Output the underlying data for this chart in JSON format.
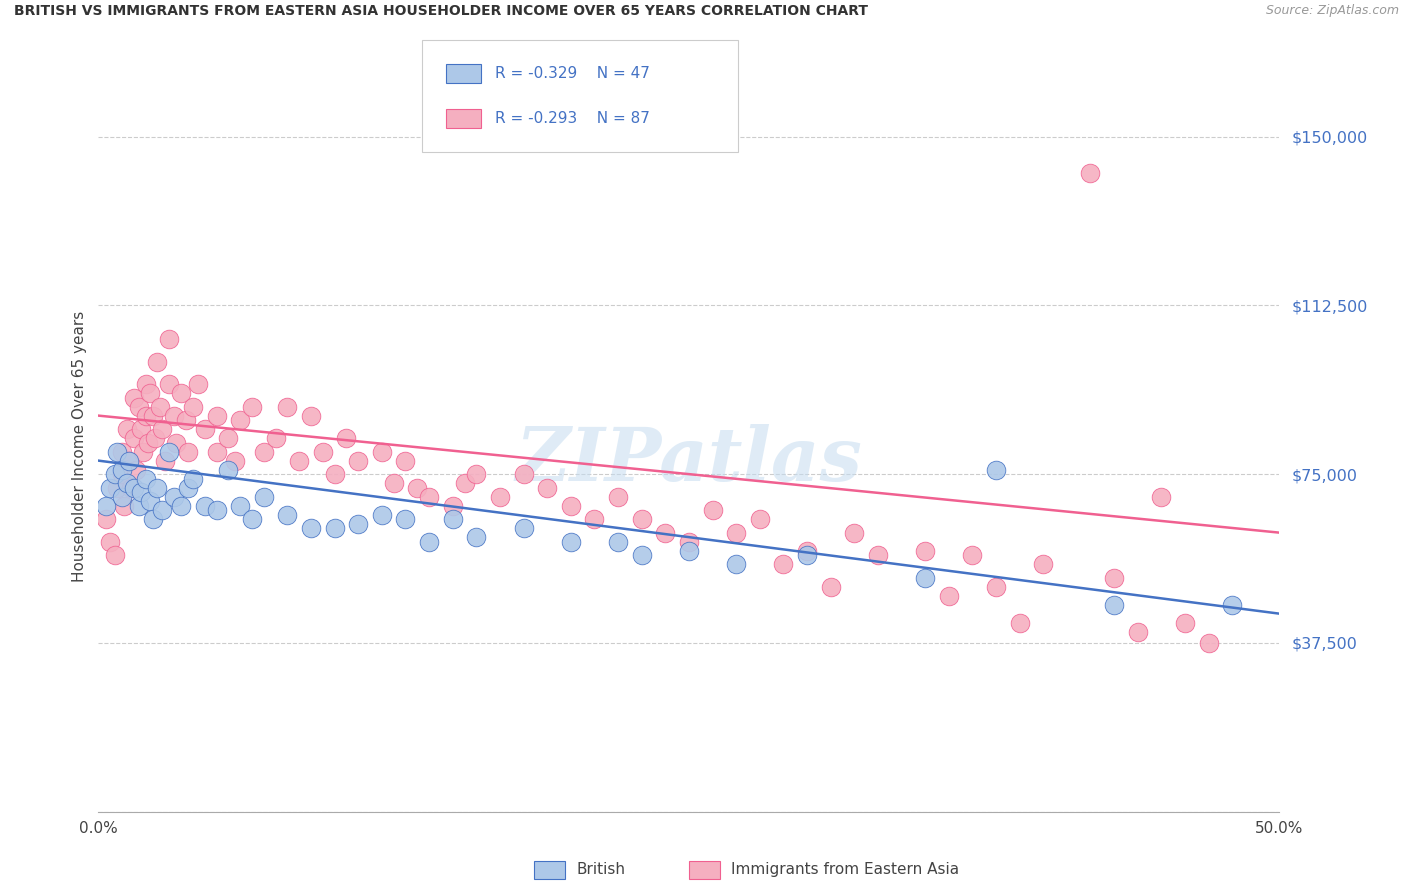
{
  "title": "BRITISH VS IMMIGRANTS FROM EASTERN ASIA HOUSEHOLDER INCOME OVER 65 YEARS CORRELATION CHART",
  "source": "Source: ZipAtlas.com",
  "ylabel": "Householder Income Over 65 years",
  "xlim": [
    0,
    50
  ],
  "ylim": [
    0,
    162500
  ],
  "yticks": [
    0,
    37500,
    75000,
    112500,
    150000
  ],
  "ytick_labels": [
    "",
    "$37,500",
    "$75,000",
    "$112,500",
    "$150,000"
  ],
  "xticks": [
    0,
    10,
    20,
    30,
    40,
    50
  ],
  "xtick_labels": [
    "0.0%",
    "",
    "",
    "",
    "",
    "50.0%"
  ],
  "watermark": "ZIPatlas",
  "legend_blue_r": "R = -0.329",
  "legend_blue_n": "N = 47",
  "legend_pink_r": "R = -0.293",
  "legend_pink_n": "N = 87",
  "blue_color": "#adc8e8",
  "pink_color": "#f5afc0",
  "blue_line_color": "#4472c4",
  "pink_line_color": "#f06090",
  "blue_scatter": [
    [
      0.3,
      68000
    ],
    [
      0.5,
      72000
    ],
    [
      0.7,
      75000
    ],
    [
      0.8,
      80000
    ],
    [
      1.0,
      76000
    ],
    [
      1.0,
      70000
    ],
    [
      1.2,
      73000
    ],
    [
      1.3,
      78000
    ],
    [
      1.5,
      72000
    ],
    [
      1.7,
      68000
    ],
    [
      1.8,
      71000
    ],
    [
      2.0,
      74000
    ],
    [
      2.2,
      69000
    ],
    [
      2.3,
      65000
    ],
    [
      2.5,
      72000
    ],
    [
      2.7,
      67000
    ],
    [
      3.0,
      80000
    ],
    [
      3.2,
      70000
    ],
    [
      3.5,
      68000
    ],
    [
      3.8,
      72000
    ],
    [
      4.0,
      74000
    ],
    [
      4.5,
      68000
    ],
    [
      5.0,
      67000
    ],
    [
      5.5,
      76000
    ],
    [
      6.0,
      68000
    ],
    [
      6.5,
      65000
    ],
    [
      7.0,
      70000
    ],
    [
      8.0,
      66000
    ],
    [
      9.0,
      63000
    ],
    [
      10.0,
      63000
    ],
    [
      11.0,
      64000
    ],
    [
      12.0,
      66000
    ],
    [
      13.0,
      65000
    ],
    [
      14.0,
      60000
    ],
    [
      15.0,
      65000
    ],
    [
      16.0,
      61000
    ],
    [
      18.0,
      63000
    ],
    [
      20.0,
      60000
    ],
    [
      22.0,
      60000
    ],
    [
      23.0,
      57000
    ],
    [
      25.0,
      58000
    ],
    [
      27.0,
      55000
    ],
    [
      30.0,
      57000
    ],
    [
      35.0,
      52000
    ],
    [
      38.0,
      76000
    ],
    [
      43.0,
      46000
    ],
    [
      48.0,
      46000
    ]
  ],
  "pink_scatter": [
    [
      0.3,
      65000
    ],
    [
      0.5,
      60000
    ],
    [
      0.7,
      57000
    ],
    [
      0.8,
      72000
    ],
    [
      1.0,
      75000
    ],
    [
      1.0,
      80000
    ],
    [
      1.1,
      68000
    ],
    [
      1.2,
      85000
    ],
    [
      1.3,
      78000
    ],
    [
      1.4,
      72000
    ],
    [
      1.5,
      92000
    ],
    [
      1.5,
      83000
    ],
    [
      1.6,
      76000
    ],
    [
      1.7,
      90000
    ],
    [
      1.8,
      85000
    ],
    [
      1.9,
      80000
    ],
    [
      2.0,
      95000
    ],
    [
      2.0,
      88000
    ],
    [
      2.1,
      82000
    ],
    [
      2.2,
      93000
    ],
    [
      2.3,
      88000
    ],
    [
      2.4,
      83000
    ],
    [
      2.5,
      100000
    ],
    [
      2.6,
      90000
    ],
    [
      2.7,
      85000
    ],
    [
      2.8,
      78000
    ],
    [
      3.0,
      105000
    ],
    [
      3.0,
      95000
    ],
    [
      3.2,
      88000
    ],
    [
      3.3,
      82000
    ],
    [
      3.5,
      93000
    ],
    [
      3.7,
      87000
    ],
    [
      3.8,
      80000
    ],
    [
      4.0,
      90000
    ],
    [
      4.2,
      95000
    ],
    [
      4.5,
      85000
    ],
    [
      5.0,
      80000
    ],
    [
      5.0,
      88000
    ],
    [
      5.5,
      83000
    ],
    [
      5.8,
      78000
    ],
    [
      6.0,
      87000
    ],
    [
      6.5,
      90000
    ],
    [
      7.0,
      80000
    ],
    [
      7.5,
      83000
    ],
    [
      8.0,
      90000
    ],
    [
      8.5,
      78000
    ],
    [
      9.0,
      88000
    ],
    [
      9.5,
      80000
    ],
    [
      10.0,
      75000
    ],
    [
      10.5,
      83000
    ],
    [
      11.0,
      78000
    ],
    [
      12.0,
      80000
    ],
    [
      12.5,
      73000
    ],
    [
      13.0,
      78000
    ],
    [
      13.5,
      72000
    ],
    [
      14.0,
      70000
    ],
    [
      15.0,
      68000
    ],
    [
      15.5,
      73000
    ],
    [
      16.0,
      75000
    ],
    [
      17.0,
      70000
    ],
    [
      18.0,
      75000
    ],
    [
      19.0,
      72000
    ],
    [
      20.0,
      68000
    ],
    [
      21.0,
      65000
    ],
    [
      22.0,
      70000
    ],
    [
      23.0,
      65000
    ],
    [
      24.0,
      62000
    ],
    [
      25.0,
      60000
    ],
    [
      26.0,
      67000
    ],
    [
      27.0,
      62000
    ],
    [
      28.0,
      65000
    ],
    [
      29.0,
      55000
    ],
    [
      30.0,
      58000
    ],
    [
      31.0,
      50000
    ],
    [
      32.0,
      62000
    ],
    [
      33.0,
      57000
    ],
    [
      35.0,
      58000
    ],
    [
      36.0,
      48000
    ],
    [
      37.0,
      57000
    ],
    [
      38.0,
      50000
    ],
    [
      39.0,
      42000
    ],
    [
      40.0,
      55000
    ],
    [
      42.0,
      142000
    ],
    [
      43.0,
      52000
    ],
    [
      44.0,
      40000
    ],
    [
      45.0,
      70000
    ],
    [
      46.0,
      42000
    ],
    [
      47.0,
      37500
    ]
  ],
  "blue_line_pts": [
    [
      0,
      78000
    ],
    [
      50,
      44000
    ]
  ],
  "pink_line_pts": [
    [
      0,
      88000
    ],
    [
      50,
      62000
    ]
  ]
}
